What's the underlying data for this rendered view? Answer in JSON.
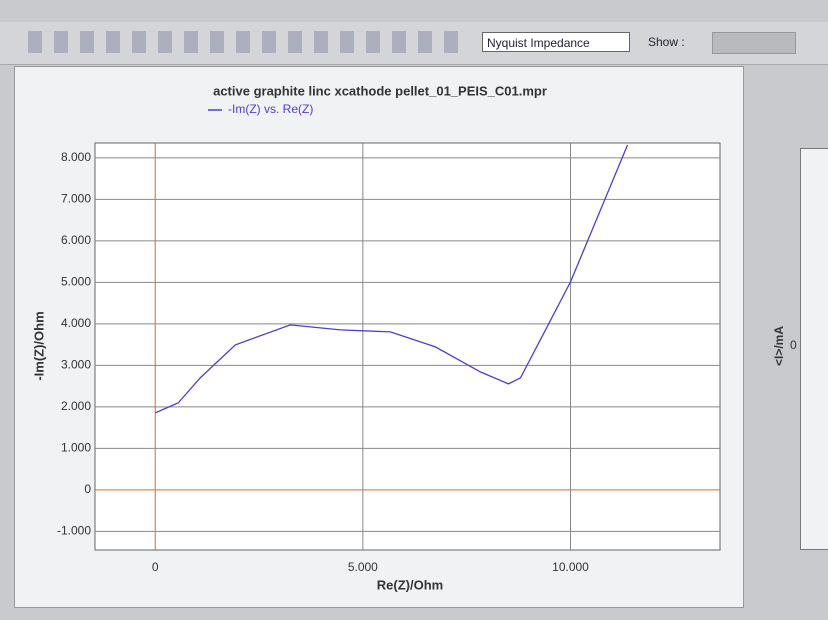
{
  "chart_data": {
    "type": "line",
    "title": "active graphite linc xcathode pellet_01_PEIS_C01.mpr",
    "xlabel": "Re(Z)/Ohm",
    "ylabel": "-Im(Z)/Ohm",
    "x": [
      0,
      554,
      1084,
      1928,
      3253,
      4458,
      5663,
      6747,
      7831,
      8506,
      8795,
      9398,
      10000,
      10723,
      11373
    ],
    "series": [
      {
        "name": "-Im(Z) vs. Re(Z)",
        "color": "#4b3fd6",
        "values": [
          1855,
          2096,
          2699,
          3494,
          3976,
          3855,
          3807,
          3446,
          2843,
          2554,
          2699,
          3855,
          5012,
          6747,
          8313
        ]
      }
    ],
    "xlim": [
      -1450,
      13600
    ],
    "ylim": [
      -1450,
      8360
    ],
    "xticks": [
      0,
      {
        "value": 5000,
        "label": "5.000"
      },
      {
        "value": 10000,
        "label": "10.000"
      }
    ],
    "yticks": [
      {
        "value": -1000,
        "label": "-1.000"
      },
      0,
      {
        "value": 1000,
        "label": "1.000"
      },
      {
        "value": 2000,
        "label": "2.000"
      },
      {
        "value": 3000,
        "label": "3.000"
      },
      {
        "value": 4000,
        "label": "4.000"
      },
      {
        "value": 5000,
        "label": "5.000"
      },
      {
        "value": 6000,
        "label": "6.000"
      },
      {
        "value": 7000,
        "label": "7.000"
      },
      {
        "value": 8000,
        "label": "8.000"
      }
    ],
    "grid": true,
    "zero_line_color": "#e0691e"
  },
  "toolbar": {
    "plot_selector": "Nyquist Impedance",
    "show_label": "Show :"
  },
  "side_panel": {
    "ylabel": "<I>/mA",
    "tick": "0"
  }
}
